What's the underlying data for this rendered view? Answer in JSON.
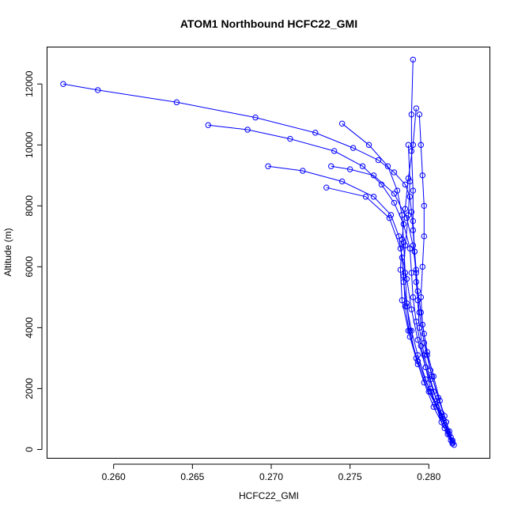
{
  "chart_data": {
    "type": "line",
    "title": "ATOM1 Northbound HCFC22_GMI",
    "xlabel": "HCFC22_GMI",
    "ylabel": "Altitude (m)",
    "xlim": [
      0.2558,
      0.2839
    ],
    "ylim": [
      -300,
      13200
    ],
    "xticks": [
      0.26,
      0.265,
      0.27,
      0.275,
      0.28
    ],
    "xtick_labels": [
      "0.260",
      "0.265",
      "0.270",
      "0.275",
      "0.280"
    ],
    "yticks": [
      0,
      2000,
      4000,
      6000,
      8000,
      10000,
      12000
    ],
    "ytick_labels": [
      "0",
      "2000",
      "4000",
      "6000",
      "8000",
      "10000",
      "12000"
    ],
    "grid": false,
    "legend": "none",
    "marker": "open-circle",
    "color": "#0000ff",
    "series": [
      {
        "x": [
          0.2815,
          0.2813,
          0.281,
          0.2806,
          0.2802,
          0.2799,
          0.2797,
          0.2795,
          0.2793,
          0.2792,
          0.2791,
          0.279,
          0.2789,
          0.2788,
          0.2785,
          0.2778,
          0.2768,
          0.2752,
          0.2728,
          0.269,
          0.264,
          0.259,
          0.2568
        ],
        "y": [
          200,
          600,
          1100,
          1700,
          2400,
          3100,
          3800,
          4500,
          5200,
          5900,
          6500,
          7200,
          7800,
          8300,
          8700,
          9100,
          9500,
          9900,
          10400,
          10900,
          11400,
          11800,
          12000
        ]
      },
      {
        "x": [
          0.2815,
          0.2812,
          0.2808,
          0.2805,
          0.2801,
          0.2798,
          0.2795,
          0.2792,
          0.279,
          0.2789,
          0.2788,
          0.2784,
          0.2778,
          0.277,
          0.2758,
          0.274,
          0.2712,
          0.2685,
          0.266
        ],
        "y": [
          200,
          500,
          900,
          1400,
          2000,
          2700,
          3400,
          4200,
          5000,
          5800,
          6600,
          7400,
          8100,
          8700,
          9300,
          9800,
          10200,
          10500,
          10650
        ]
      },
      {
        "x": [
          0.2814,
          0.281,
          0.2804,
          0.2798,
          0.2793,
          0.2789,
          0.2786,
          0.2784,
          0.2783,
          0.2781,
          0.2776,
          0.2765,
          0.2745,
          0.272,
          0.2698
        ],
        "y": [
          300,
          800,
          1500,
          2300,
          3100,
          3900,
          4700,
          5500,
          6300,
          7000,
          7700,
          8300,
          8800,
          9150,
          9300
        ]
      },
      {
        "x": [
          0.2815,
          0.2811,
          0.2806,
          0.2801,
          0.2797,
          0.2794,
          0.2792,
          0.2791,
          0.279,
          0.279,
          0.2789,
          0.2789,
          0.279
        ],
        "y": [
          250,
          900,
          1700,
          2600,
          3500,
          4500,
          5500,
          6500,
          7500,
          8500,
          9800,
          11000,
          12800
        ]
      },
      {
        "x": [
          0.2815,
          0.281,
          0.2803,
          0.2797,
          0.2792,
          0.2788,
          0.2786,
          0.2785,
          0.2784,
          0.2783,
          0.278,
          0.2774,
          0.2762,
          0.2745
        ],
        "y": [
          200,
          700,
          1400,
          2200,
          3000,
          3900,
          4800,
          5800,
          6800,
          7700,
          8500,
          9300,
          10000,
          10700
        ]
      },
      {
        "x": [
          0.2816,
          0.2813,
          0.2809,
          0.2805,
          0.2801,
          0.2797,
          0.2794,
          0.2793,
          0.2792,
          0.279,
          0.2786,
          0.2778,
          0.2765,
          0.275,
          0.2738
        ],
        "y": [
          150,
          500,
          1000,
          1600,
          2300,
          3100,
          4000,
          4900,
          5800,
          6700,
          7600,
          8400,
          9000,
          9200,
          9300
        ]
      },
      {
        "x": [
          0.2815,
          0.2811,
          0.2807,
          0.2803,
          0.2799,
          0.2796,
          0.2795,
          0.2796,
          0.2797,
          0.2797,
          0.2796,
          0.2795,
          0.2794
        ],
        "y": [
          300,
          900,
          1600,
          2400,
          3200,
          4100,
          5000,
          6000,
          7000,
          8000,
          9000,
          10000,
          11000
        ]
      },
      {
        "x": [
          0.2814,
          0.2808,
          0.28,
          0.2793,
          0.2788,
          0.2785,
          0.2784,
          0.2785,
          0.2787,
          0.2788,
          0.2787
        ],
        "y": [
          400,
          1100,
          1900,
          2800,
          3700,
          4700,
          5700,
          6700,
          7700,
          8800,
          10000
        ]
      },
      {
        "x": [
          0.2815,
          0.2812,
          0.2808,
          0.2803,
          0.2798,
          0.2793,
          0.2789,
          0.2786,
          0.2782,
          0.2775,
          0.276,
          0.2735
        ],
        "y": [
          200,
          600,
          1200,
          1900,
          2700,
          3600,
          4600,
          5600,
          6600,
          7600,
          8300,
          8600
        ]
      },
      {
        "x": [
          0.2815,
          0.2809,
          0.2801,
          0.2793,
          0.2787,
          0.2783,
          0.2782,
          0.2783,
          0.2785,
          0.2787,
          0.279,
          0.2792
        ],
        "y": [
          250,
          1000,
          1900,
          2900,
          3900,
          4900,
          5900,
          6900,
          7900,
          8900,
          10000,
          11200
        ]
      }
    ]
  }
}
